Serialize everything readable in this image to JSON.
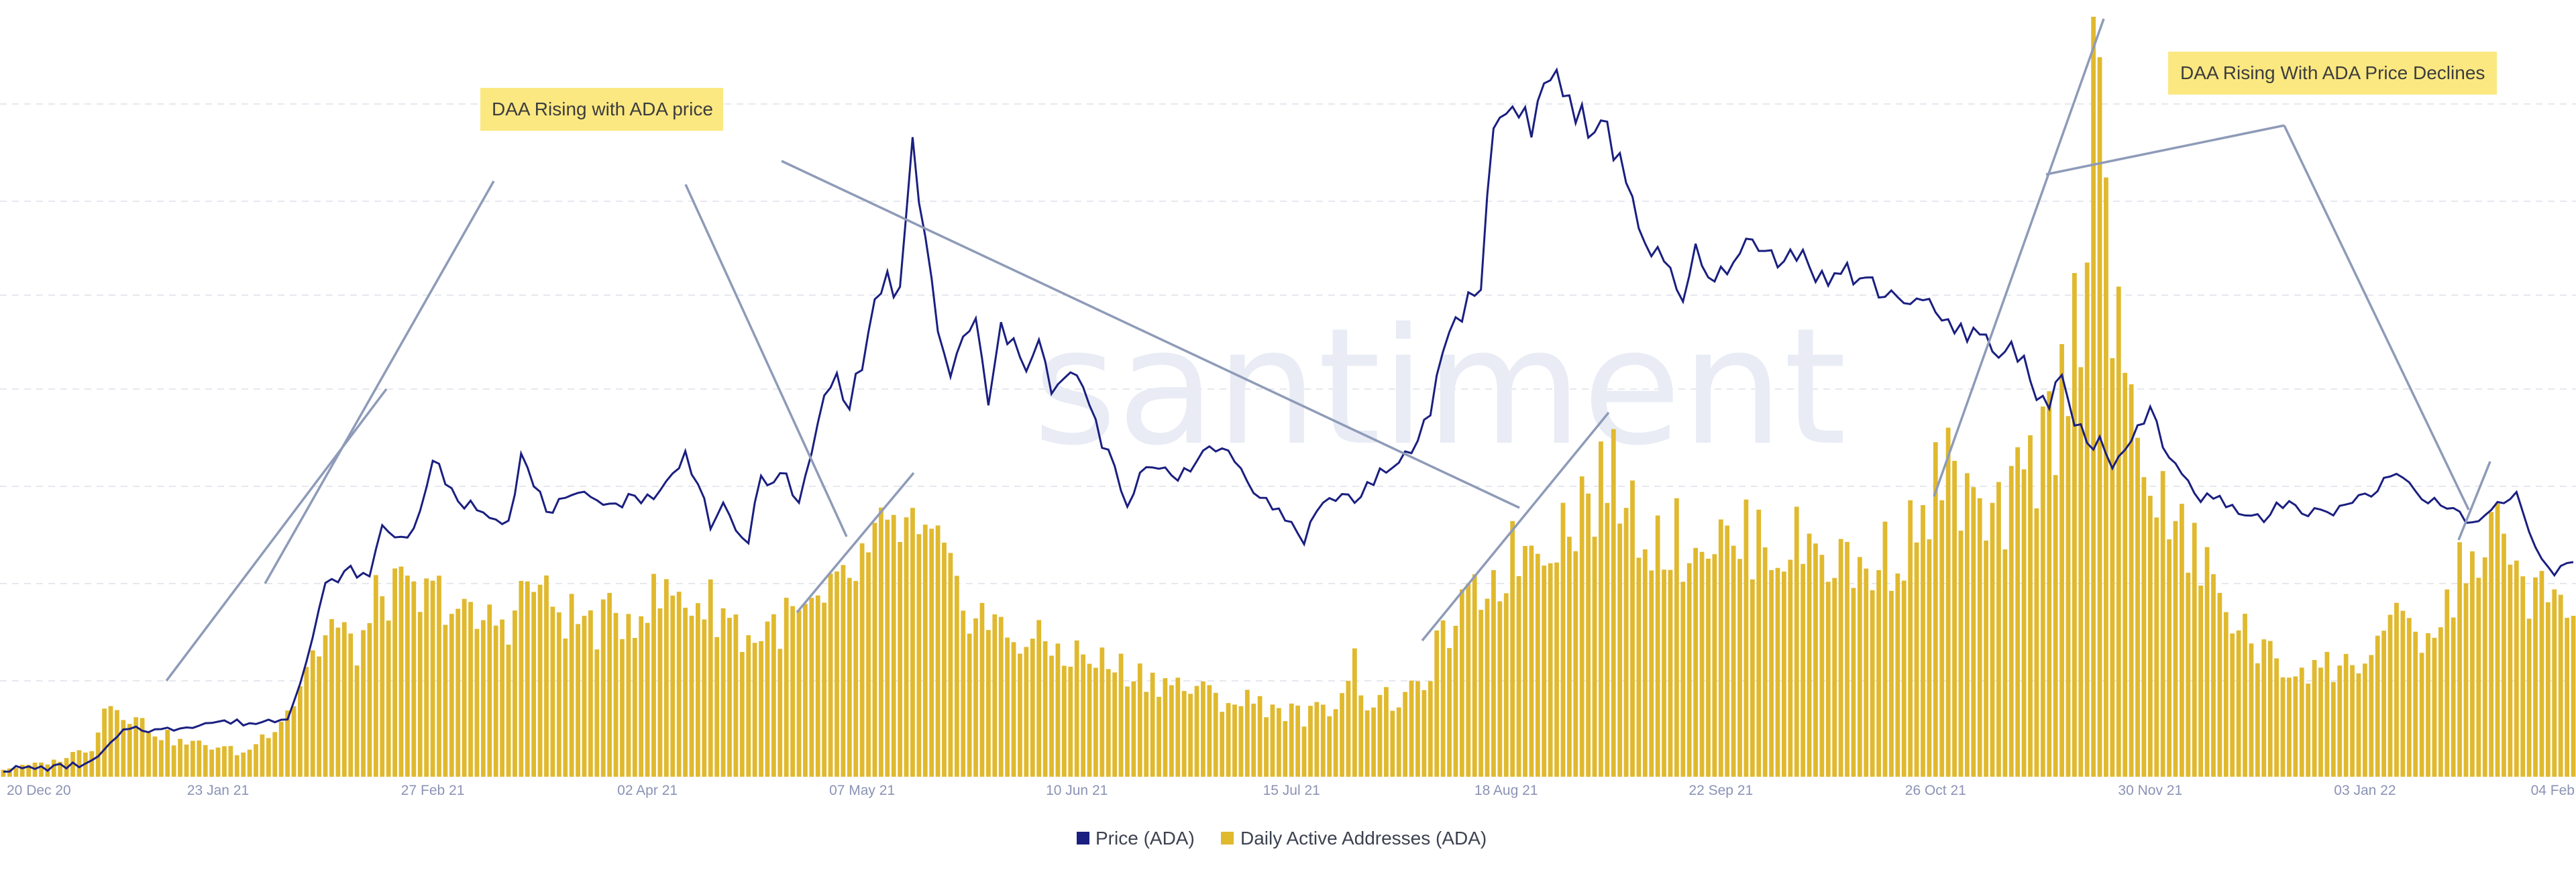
{
  "watermark": "santiment",
  "chart_data": {
    "type": "bar+line",
    "x_ticks": [
      "20 Dec 20",
      "23 Jan 21",
      "27 Feb 21",
      "02 Apr 21",
      "07 May 21",
      "10 Jun 21",
      "15 Jul 21",
      "18 Aug 21",
      "22 Sep 21",
      "26 Oct 21",
      "30 Nov 21",
      "03 Jan 22",
      "04 Feb"
    ],
    "x_tick_index": [
      0,
      34,
      68,
      102,
      136,
      170,
      204,
      238,
      272,
      306,
      340,
      374,
      407
    ],
    "grid": "dashed-horizontal",
    "legend_position": "bottom-center",
    "price_ylim": [
      0,
      1
    ],
    "daa_ylim": [
      0,
      1
    ],
    "series": [
      {
        "name": "Price (ADA)",
        "type": "line",
        "color": "#1a1f80",
        "keypoints": [
          [
            0,
            0.01
          ],
          [
            8,
            0.012
          ],
          [
            14,
            0.018
          ],
          [
            18,
            0.05
          ],
          [
            20,
            0.065
          ],
          [
            25,
            0.06
          ],
          [
            30,
            0.068
          ],
          [
            34,
            0.072
          ],
          [
            40,
            0.07
          ],
          [
            45,
            0.078
          ],
          [
            48,
            0.15
          ],
          [
            51,
            0.25
          ],
          [
            55,
            0.27
          ],
          [
            58,
            0.26
          ],
          [
            60,
            0.33
          ],
          [
            63,
            0.31
          ],
          [
            66,
            0.34
          ],
          [
            68,
            0.42
          ],
          [
            70,
            0.38
          ],
          [
            72,
            0.36
          ],
          [
            76,
            0.35
          ],
          [
            80,
            0.335
          ],
          [
            82,
            0.42
          ],
          [
            84,
            0.38
          ],
          [
            86,
            0.35
          ],
          [
            90,
            0.36
          ],
          [
            94,
            0.37
          ],
          [
            96,
            0.355
          ],
          [
            100,
            0.365
          ],
          [
            104,
            0.37
          ],
          [
            106,
            0.395
          ],
          [
            108,
            0.42
          ],
          [
            110,
            0.39
          ],
          [
            112,
            0.33
          ],
          [
            114,
            0.35
          ],
          [
            116,
            0.32
          ],
          [
            118,
            0.31
          ],
          [
            120,
            0.39
          ],
          [
            124,
            0.39
          ],
          [
            126,
            0.355
          ],
          [
            128,
            0.42
          ],
          [
            130,
            0.5
          ],
          [
            132,
            0.52
          ],
          [
            134,
            0.49
          ],
          [
            136,
            0.54
          ],
          [
            138,
            0.62
          ],
          [
            140,
            0.65
          ],
          [
            142,
            0.63
          ],
          [
            144,
            0.82
          ],
          [
            146,
            0.7
          ],
          [
            148,
            0.59
          ],
          [
            150,
            0.52
          ],
          [
            152,
            0.57
          ],
          [
            154,
            0.6
          ],
          [
            156,
            0.48
          ],
          [
            158,
            0.59
          ],
          [
            160,
            0.56
          ],
          [
            162,
            0.54
          ],
          [
            164,
            0.58
          ],
          [
            166,
            0.5
          ],
          [
            170,
            0.53
          ],
          [
            172,
            0.48
          ],
          [
            174,
            0.44
          ],
          [
            176,
            0.4
          ],
          [
            178,
            0.35
          ],
          [
            180,
            0.39
          ],
          [
            182,
            0.41
          ],
          [
            186,
            0.395
          ],
          [
            190,
            0.42
          ],
          [
            194,
            0.43
          ],
          [
            196,
            0.4
          ],
          [
            198,
            0.38
          ],
          [
            200,
            0.36
          ],
          [
            204,
            0.33
          ],
          [
            206,
            0.31
          ],
          [
            208,
            0.35
          ],
          [
            210,
            0.36
          ],
          [
            212,
            0.37
          ],
          [
            214,
            0.36
          ],
          [
            216,
            0.38
          ],
          [
            218,
            0.4
          ],
          [
            220,
            0.395
          ],
          [
            224,
            0.44
          ],
          [
            226,
            0.48
          ],
          [
            228,
            0.56
          ],
          [
            230,
            0.6
          ],
          [
            232,
            0.62
          ],
          [
            234,
            0.65
          ],
          [
            236,
            0.85
          ],
          [
            238,
            0.87
          ],
          [
            240,
            0.88
          ],
          [
            242,
            0.85
          ],
          [
            244,
            0.9
          ],
          [
            246,
            0.92
          ],
          [
            248,
            0.88
          ],
          [
            250,
            0.86
          ],
          [
            252,
            0.83
          ],
          [
            254,
            0.85
          ],
          [
            256,
            0.8
          ],
          [
            258,
            0.76
          ],
          [
            260,
            0.7
          ],
          [
            262,
            0.68
          ],
          [
            264,
            0.65
          ],
          [
            266,
            0.62
          ],
          [
            268,
            0.69
          ],
          [
            270,
            0.64
          ],
          [
            272,
            0.68
          ],
          [
            274,
            0.66
          ],
          [
            276,
            0.7
          ],
          [
            280,
            0.68
          ],
          [
            284,
            0.69
          ],
          [
            288,
            0.65
          ],
          [
            292,
            0.66
          ],
          [
            296,
            0.64
          ],
          [
            300,
            0.63
          ],
          [
            304,
            0.62
          ],
          [
            306,
            0.6
          ],
          [
            308,
            0.59
          ],
          [
            310,
            0.58
          ],
          [
            312,
            0.585
          ],
          [
            314,
            0.57
          ],
          [
            316,
            0.55
          ],
          [
            318,
            0.56
          ],
          [
            320,
            0.55
          ],
          [
            322,
            0.5
          ],
          [
            324,
            0.49
          ],
          [
            326,
            0.52
          ],
          [
            328,
            0.47
          ],
          [
            330,
            0.43
          ],
          [
            332,
            0.44
          ],
          [
            334,
            0.4
          ],
          [
            336,
            0.42
          ],
          [
            338,
            0.46
          ],
          [
            340,
            0.48
          ],
          [
            342,
            0.43
          ],
          [
            344,
            0.41
          ],
          [
            346,
            0.38
          ],
          [
            348,
            0.36
          ],
          [
            350,
            0.37
          ],
          [
            354,
            0.345
          ],
          [
            358,
            0.34
          ],
          [
            362,
            0.36
          ],
          [
            366,
            0.345
          ],
          [
            370,
            0.35
          ],
          [
            372,
            0.36
          ],
          [
            376,
            0.38
          ],
          [
            380,
            0.39
          ],
          [
            384,
            0.36
          ],
          [
            388,
            0.35
          ],
          [
            390,
            0.34
          ],
          [
            392,
            0.33
          ],
          [
            394,
            0.35
          ],
          [
            396,
            0.36
          ],
          [
            398,
            0.37
          ],
          [
            400,
            0.32
          ],
          [
            402,
            0.29
          ],
          [
            404,
            0.27
          ],
          [
            406,
            0.275
          ],
          [
            407,
            0.28
          ]
        ]
      },
      {
        "name": "Daily Active Addresses (ADA)",
        "type": "bar",
        "color": "#e0b92e",
        "n_bars": 408,
        "keypoints": [
          [
            0,
            0.01
          ],
          [
            8,
            0.02
          ],
          [
            14,
            0.04
          ],
          [
            16,
            0.09
          ],
          [
            18,
            0.1
          ],
          [
            20,
            0.08
          ],
          [
            24,
            0.06
          ],
          [
            28,
            0.045
          ],
          [
            34,
            0.04
          ],
          [
            38,
            0.03
          ],
          [
            42,
            0.06
          ],
          [
            46,
            0.1
          ],
          [
            48,
            0.15
          ],
          [
            50,
            0.17
          ],
          [
            52,
            0.2
          ],
          [
            54,
            0.18
          ],
          [
            56,
            0.17
          ],
          [
            58,
            0.2
          ],
          [
            60,
            0.25
          ],
          [
            62,
            0.24
          ],
          [
            66,
            0.23
          ],
          [
            70,
            0.24
          ],
          [
            74,
            0.2
          ],
          [
            80,
            0.21
          ],
          [
            84,
            0.26
          ],
          [
            86,
            0.23
          ],
          [
            90,
            0.21
          ],
          [
            94,
            0.2
          ],
          [
            98,
            0.21
          ],
          [
            102,
            0.23
          ],
          [
            106,
            0.24
          ],
          [
            110,
            0.23
          ],
          [
            114,
            0.22
          ],
          [
            118,
            0.18
          ],
          [
            122,
            0.2
          ],
          [
            126,
            0.21
          ],
          [
            130,
            0.22
          ],
          [
            134,
            0.26
          ],
          [
            136,
            0.28
          ],
          [
            138,
            0.3
          ],
          [
            140,
            0.31
          ],
          [
            142,
            0.33
          ],
          [
            144,
            0.32
          ],
          [
            146,
            0.29
          ],
          [
            148,
            0.3
          ],
          [
            150,
            0.25
          ],
          [
            154,
            0.22
          ],
          [
            158,
            0.19
          ],
          [
            162,
            0.18
          ],
          [
            166,
            0.17
          ],
          [
            170,
            0.16
          ],
          [
            174,
            0.15
          ],
          [
            178,
            0.14
          ],
          [
            182,
            0.13
          ],
          [
            186,
            0.12
          ],
          [
            190,
            0.11
          ],
          [
            194,
            0.1
          ],
          [
            198,
            0.1
          ],
          [
            202,
            0.09
          ],
          [
            206,
            0.08
          ],
          [
            210,
            0.09
          ],
          [
            212,
            0.12
          ],
          [
            214,
            0.15
          ],
          [
            216,
            0.1
          ],
          [
            220,
            0.1
          ],
          [
            224,
            0.11
          ],
          [
            226,
            0.15
          ],
          [
            228,
            0.18
          ],
          [
            230,
            0.2
          ],
          [
            232,
            0.22
          ],
          [
            234,
            0.25
          ],
          [
            236,
            0.26
          ],
          [
            238,
            0.28
          ],
          [
            240,
            0.3
          ],
          [
            242,
            0.31
          ],
          [
            244,
            0.32
          ],
          [
            246,
            0.33
          ],
          [
            248,
            0.34
          ],
          [
            250,
            0.36
          ],
          [
            252,
            0.38
          ],
          [
            254,
            0.4
          ],
          [
            256,
            0.38
          ],
          [
            258,
            0.35
          ],
          [
            260,
            0.33
          ],
          [
            262,
            0.32
          ],
          [
            266,
            0.31
          ],
          [
            270,
            0.32
          ],
          [
            274,
            0.3
          ],
          [
            278,
            0.32
          ],
          [
            282,
            0.3
          ],
          [
            286,
            0.31
          ],
          [
            290,
            0.29
          ],
          [
            294,
            0.27
          ],
          [
            298,
            0.29
          ],
          [
            300,
            0.3
          ],
          [
            302,
            0.32
          ],
          [
            304,
            0.34
          ],
          [
            306,
            0.38
          ],
          [
            308,
            0.4
          ],
          [
            310,
            0.38
          ],
          [
            312,
            0.35
          ],
          [
            314,
            0.32
          ],
          [
            316,
            0.33
          ],
          [
            318,
            0.36
          ],
          [
            320,
            0.38
          ],
          [
            322,
            0.42
          ],
          [
            324,
            0.46
          ],
          [
            326,
            0.5
          ],
          [
            328,
            0.6
          ],
          [
            330,
            0.7
          ],
          [
            331,
            1.0
          ],
          [
            332,
            0.9
          ],
          [
            334,
            0.6
          ],
          [
            336,
            0.5
          ],
          [
            338,
            0.45
          ],
          [
            340,
            0.4
          ],
          [
            342,
            0.35
          ],
          [
            344,
            0.32
          ],
          [
            346,
            0.31
          ],
          [
            348,
            0.28
          ],
          [
            350,
            0.25
          ],
          [
            354,
            0.2
          ],
          [
            358,
            0.16
          ],
          [
            362,
            0.14
          ],
          [
            366,
            0.15
          ],
          [
            370,
            0.14
          ],
          [
            374,
            0.16
          ],
          [
            378,
            0.2
          ],
          [
            382,
            0.18
          ],
          [
            386,
            0.19
          ],
          [
            388,
            0.25
          ],
          [
            390,
            0.28
          ],
          [
            392,
            0.3
          ],
          [
            394,
            0.32
          ],
          [
            396,
            0.3
          ],
          [
            398,
            0.27
          ],
          [
            400,
            0.25
          ],
          [
            402,
            0.24
          ],
          [
            404,
            0.23
          ],
          [
            406,
            0.2
          ],
          [
            407,
            0.19
          ]
        ]
      }
    ],
    "annotations": [
      {
        "text": "DAA Rising with ADA price"
      },
      {
        "text": "DAA Rising With ADA Price Declines"
      }
    ]
  },
  "legend": [
    {
      "label": "Price (ADA)",
      "color": "#1a1f80"
    },
    {
      "label": "Daily Active Addresses (ADA)",
      "color": "#e0b92e"
    }
  ]
}
